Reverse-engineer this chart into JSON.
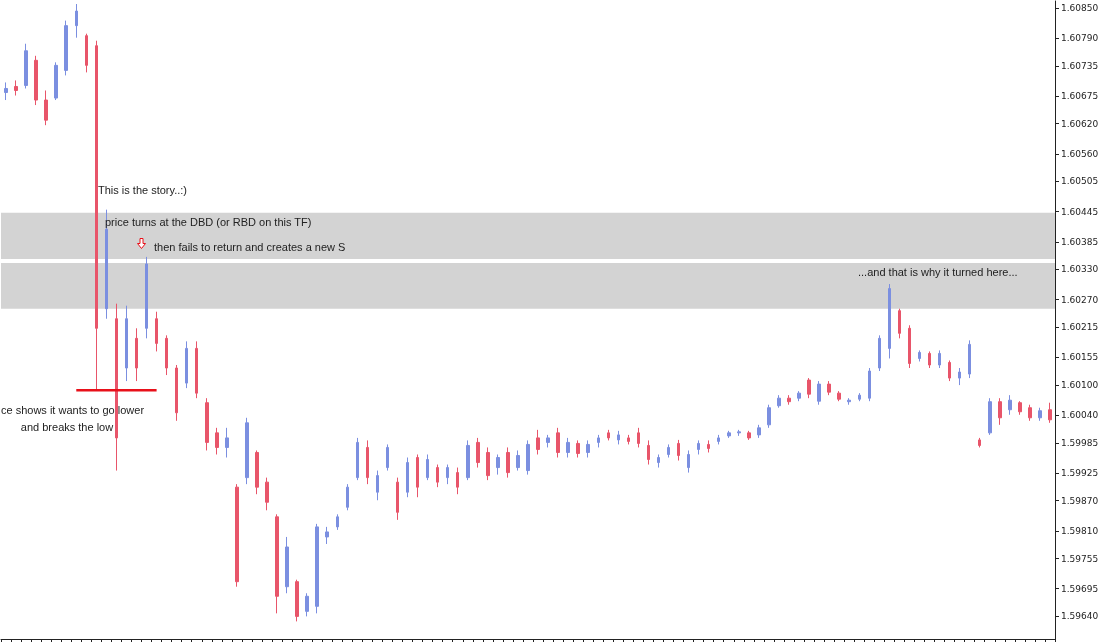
{
  "chart_data": {
    "type": "candlestick",
    "categories": [
      null,
      null,
      null,
      null,
      null,
      null,
      null,
      null,
      null,
      null,
      null,
      null,
      null,
      null,
      null,
      null,
      null,
      null,
      null,
      null,
      null,
      null,
      null,
      null,
      null,
      null,
      null,
      null,
      null,
      null,
      null,
      null,
      null,
      null,
      null,
      null,
      null,
      null,
      null,
      null,
      null,
      null,
      null,
      null,
      null,
      null,
      null,
      null,
      null,
      null,
      null,
      null,
      null,
      null,
      null,
      null,
      null,
      null,
      null,
      null,
      null,
      null,
      null,
      null,
      null,
      null,
      null,
      null,
      null,
      null,
      null,
      null,
      null,
      null,
      null,
      null,
      null,
      null,
      null,
      null,
      null,
      null,
      null,
      null,
      null,
      null,
      null,
      null,
      null,
      null,
      null,
      null,
      null,
      null,
      null,
      null,
      null,
      null,
      null,
      null,
      null,
      null,
      null,
      null,
      null
    ],
    "ohlc": [
      [
        1.60682,
        1.60702,
        1.60667,
        1.6069
      ],
      [
        1.60694,
        1.60706,
        1.60676,
        1.60686
      ],
      [
        1.60696,
        1.60779,
        1.6069,
        1.60765
      ],
      [
        1.60746,
        1.60755,
        1.60657,
        1.60667
      ],
      [
        1.60667,
        1.60686,
        1.60617,
        1.60627
      ],
      [
        1.60671,
        1.60742,
        1.60667,
        1.60736
      ],
      [
        1.60726,
        1.60825,
        1.60716,
        1.60815
      ],
      [
        1.60815,
        1.60858,
        1.60791,
        1.60844
      ],
      [
        1.60795,
        1.60799,
        1.60722,
        1.60736
      ],
      [
        1.60775,
        1.60785,
        1.6009,
        1.60213
      ],
      [
        1.60252,
        1.60449,
        1.60232,
        1.6041
      ],
      [
        1.60232,
        1.60262,
        1.5993,
        1.59995
      ],
      [
        1.60134,
        1.60258,
        1.60108,
        1.60232
      ],
      [
        1.60193,
        1.60213,
        1.60108,
        1.60134
      ],
      [
        1.60213,
        1.60355,
        1.60193,
        1.60341
      ],
      [
        1.60232,
        1.60246,
        1.60167,
        1.60183
      ],
      [
        1.60193,
        1.60199,
        1.6012,
        1.60134
      ],
      [
        1.60134,
        1.6014,
        1.60029,
        1.60045
      ],
      [
        1.60104,
        1.60187,
        1.60094,
        1.60173
      ],
      [
        1.60173,
        1.60187,
        1.60074,
        1.60084
      ],
      [
        1.60065,
        1.60074,
        1.5997,
        1.59986
      ],
      [
        1.60005,
        1.60015,
        1.59962,
        1.59976
      ],
      [
        1.59976,
        1.60015,
        1.59956,
        1.59995
      ],
      [
        1.59897,
        1.59903,
        1.59699,
        1.59709
      ],
      [
        1.59916,
        1.60035,
        1.59903,
        1.60025
      ],
      [
        1.59966,
        1.5997,
        1.59883,
        1.59897
      ],
      [
        1.59907,
        1.59916,
        1.59851,
        1.59867
      ],
      [
        1.59838,
        1.59843,
        1.59646,
        1.5968
      ],
      [
        1.59699,
        1.59798,
        1.59686,
        1.59778
      ],
      [
        1.59709,
        1.59713,
        1.5963,
        1.5964
      ],
      [
        1.5965,
        1.59686,
        1.5964,
        1.5968
      ],
      [
        1.5966,
        1.59824,
        1.59646,
        1.59818
      ],
      [
        1.59798,
        1.59818,
        1.59784,
        1.59808
      ],
      [
        1.59818,
        1.59843,
        1.59812,
        1.59838
      ],
      [
        1.59857,
        1.59903,
        1.59851,
        1.59897
      ],
      [
        1.59916,
        1.59995,
        1.59911,
        1.59986
      ],
      [
        1.59976,
        1.5999,
        1.59903,
        1.59916
      ],
      [
        1.59887,
        1.5993,
        1.59871,
        1.5992
      ],
      [
        1.59936,
        1.59982,
        1.5993,
        1.59976
      ],
      [
        1.59907,
        1.59916,
        1.59832,
        1.59847
      ],
      [
        1.59887,
        1.59956,
        1.59877,
        1.59946
      ],
      [
        1.59956,
        1.59962,
        1.59877,
        1.59897
      ],
      [
        1.59916,
        1.59962,
        1.59911,
        1.59952
      ],
      [
        1.59936,
        1.59942,
        1.59897,
        1.59907
      ],
      [
        1.59916,
        1.59942,
        1.59903,
        1.59936
      ],
      [
        1.59926,
        1.59936,
        1.59883,
        1.59897
      ],
      [
        1.59916,
        1.5999,
        1.59911,
        1.5998
      ],
      [
        1.59986,
        1.59995,
        1.59936,
        1.59946
      ],
      [
        1.59966,
        1.59976,
        1.59911,
        1.5992
      ],
      [
        1.59936,
        1.59962,
        1.59922,
        1.59956
      ],
      [
        1.59966,
        1.59976,
        1.59916,
        1.59926
      ],
      [
        1.59936,
        1.5997,
        1.5993,
        1.5996
      ],
      [
        1.5993,
        1.5999,
        1.59922,
        1.59982
      ],
      [
        1.59995,
        1.60011,
        1.59962,
        1.59972
      ],
      [
        1.59986,
        1.60001,
        1.59976,
        1.59995
      ],
      [
        1.60005,
        1.60015,
        1.59956,
        1.59966
      ],
      [
        1.59966,
        1.59995,
        1.59956,
        1.59986
      ],
      [
        1.59984,
        1.5999,
        1.59956,
        1.59964
      ],
      [
        1.59966,
        1.5999,
        1.59956,
        1.59982
      ],
      [
        1.59986,
        1.60001,
        1.59976,
        1.59995
      ],
      [
        1.60005,
        1.60011,
        1.5999,
        1.59995
      ],
      [
        1.59991,
        1.60009,
        1.59982,
        1.60001
      ],
      [
        1.59995,
        1.60001,
        1.59982,
        1.59988
      ],
      [
        1.60005,
        1.60015,
        1.59976,
        1.59984
      ],
      [
        1.5998,
        1.5999,
        1.59942,
        1.59952
      ],
      [
        1.59946,
        1.59962,
        1.59936,
        1.59956
      ],
      [
        1.59962,
        1.59982,
        1.59956,
        1.59976
      ],
      [
        1.59984,
        1.59991,
        1.5995,
        1.5996
      ],
      [
        1.59936,
        1.5997,
        1.59926,
        1.59962
      ],
      [
        1.59972,
        1.5999,
        1.59962,
        1.59984
      ],
      [
        1.59982,
        1.5999,
        1.59966,
        1.59974
      ],
      [
        1.59988,
        1.60001,
        1.59982,
        1.59995
      ],
      [
        1.59999,
        1.60009,
        1.59995,
        1.60005
      ],
      [
        1.60005,
        1.60011,
        1.59999,
        1.60007
      ],
      [
        1.60005,
        1.60009,
        1.59991,
        1.59995
      ],
      [
        1.60001,
        1.60021,
        1.59995,
        1.60015
      ],
      [
        1.60021,
        1.60061,
        1.60015,
        1.60055
      ],
      [
        1.60059,
        1.6008,
        1.60055,
        1.60074
      ],
      [
        1.60074,
        1.6008,
        1.60061,
        1.60067
      ],
      [
        1.60074,
        1.60088,
        1.60068,
        1.60084
      ],
      [
        1.6011,
        1.60114,
        1.60074,
        1.60082
      ],
      [
        1.60068,
        1.60108,
        1.60061,
        1.60102
      ],
      [
        1.60102,
        1.60108,
        1.6008,
        1.60086
      ],
      [
        1.60084,
        1.60088,
        1.60068,
        1.60072
      ],
      [
        1.60067,
        1.60074,
        1.60061,
        1.6007
      ],
      [
        1.60072,
        1.60084,
        1.60068,
        1.6008
      ],
      [
        1.60074,
        1.60134,
        1.60068,
        1.60128
      ],
      [
        1.60134,
        1.60199,
        1.60128,
        1.60193
      ],
      [
        1.60173,
        1.60301,
        1.60153,
        1.60292
      ],
      [
        1.60248,
        1.60252,
        1.60193,
        1.60203
      ],
      [
        1.60213,
        1.60219,
        1.60134,
        1.60143
      ],
      [
        1.60153,
        1.60169,
        1.60147,
        1.60165
      ],
      [
        1.60163,
        1.60167,
        1.60134,
        1.6014
      ],
      [
        1.6014,
        1.60169,
        1.60134,
        1.60163
      ],
      [
        1.60145,
        1.60149,
        1.60108,
        1.60114
      ],
      [
        1.60114,
        1.60134,
        1.601,
        1.60126
      ],
      [
        1.60122,
        1.60189,
        1.60114,
        1.60181
      ],
      [
        1.59991,
        1.59995,
        1.59976,
        1.5998
      ],
      [
        1.60005,
        1.60074,
        1.60001,
        1.60067
      ],
      [
        1.60067,
        1.60074,
        1.60021,
        1.60035
      ],
      [
        1.60051,
        1.6008,
        1.60041,
        1.6007
      ],
      [
        1.60065,
        1.60068,
        1.60041,
        1.60047
      ],
      [
        1.60055,
        1.60061,
        1.60029,
        1.60035
      ],
      [
        1.60035,
        1.60055,
        1.60029,
        1.60049
      ],
      [
        1.60051,
        1.60065,
        1.60025,
        1.60031
      ]
    ],
    "colors": [
      "#7b8fe0",
      "#e8556a",
      "#7b8fe0",
      "#e8556a",
      "#e8556a",
      "#7b8fe0",
      "#7b8fe0",
      "#7b8fe0",
      "#e8556a",
      "#e8556a",
      "#7b8fe0",
      "#e8556a",
      "#7b8fe0",
      "#e8556a",
      "#7b8fe0",
      "#e8556a",
      "#e8556a",
      "#e8556a",
      "#7b8fe0",
      "#e8556a",
      "#e8556a",
      "#e8556a",
      "#7b8fe0",
      "#e8556a",
      "#7b8fe0",
      "#e8556a",
      "#e8556a",
      "#e8556a",
      "#7b8fe0",
      "#e8556a",
      "#7b8fe0",
      "#7b8fe0",
      "#7b8fe0",
      "#7b8fe0",
      "#7b8fe0",
      "#7b8fe0",
      "#e8556a",
      "#7b8fe0",
      "#7b8fe0",
      "#e8556a",
      "#7b8fe0",
      "#e8556a",
      "#7b8fe0",
      "#e8556a",
      "#7b8fe0",
      "#e8556a",
      "#7b8fe0",
      "#e8556a",
      "#e8556a",
      "#7b8fe0",
      "#e8556a",
      "#7b8fe0",
      "#7b8fe0",
      "#e8556a",
      "#7b8fe0",
      "#e8556a",
      "#7b8fe0",
      "#e8556a",
      "#7b8fe0",
      "#7b8fe0",
      "#e8556a",
      "#7b8fe0",
      "#e8556a",
      "#e8556a",
      "#e8556a",
      "#7b8fe0",
      "#7b8fe0",
      "#e8556a",
      "#7b8fe0",
      "#7b8fe0",
      "#e8556a",
      "#7b8fe0",
      "#7b8fe0",
      "#7b8fe0",
      "#e8556a",
      "#7b8fe0",
      "#7b8fe0",
      "#7b8fe0",
      "#e8556a",
      "#7b8fe0",
      "#e8556a",
      "#7b8fe0",
      "#e8556a",
      "#e8556a",
      "#7b8fe0",
      "#7b8fe0",
      "#7b8fe0",
      "#7b8fe0",
      "#7b8fe0",
      "#e8556a",
      "#e8556a",
      "#7b8fe0",
      "#e8556a",
      "#7b8fe0",
      "#e8556a",
      "#7b8fe0",
      "#7b8fe0",
      "#e8556a",
      "#7b8fe0",
      "#e8556a",
      "#7b8fe0",
      "#e8556a",
      "#e8556a",
      "#7b8fe0",
      "#e8556a"
    ],
    "series": [
      {
        "type": "line",
        "color": "#e8101a",
        "values": [
          null,
          null,
          null,
          null,
          null,
          null,
          null,
          1.6009,
          1.6009,
          1.6009,
          1.6009,
          1.6009,
          1.6009,
          1.6009,
          1.6009,
          1.6009,
          null,
          null,
          null,
          null,
          null,
          null,
          null,
          null,
          null,
          null,
          null,
          null,
          null,
          null,
          null,
          null,
          null,
          null,
          null,
          null,
          null,
          null,
          null,
          null,
          null,
          null,
          null,
          null,
          null,
          null,
          null,
          null,
          null,
          null,
          null,
          null,
          null,
          null,
          null,
          null,
          null,
          null,
          null,
          null,
          null,
          null,
          null,
          null,
          null,
          null,
          null,
          null,
          null,
          null,
          null,
          null,
          null,
          null,
          null,
          null,
          null,
          null,
          null,
          null,
          null,
          null,
          null,
          null,
          null,
          null,
          null,
          null,
          null,
          null,
          null,
          null,
          null,
          null,
          null,
          null,
          null,
          null,
          null,
          null,
          null,
          null,
          null,
          null,
          null
        ]
      }
    ],
    "bands": [
      {
        "axis": "y",
        "from": 1.60351,
        "to": 1.60443,
        "color": "#d3d3d3"
      },
      {
        "axis": "y",
        "from": 1.60252,
        "to": 1.60343,
        "color": "#d3d3d3"
      }
    ],
    "annotations": [
      "This is the story..:)",
      "price turns at the DBD (or RBD on this TF)",
      "then fails to return and creates a new S",
      "...and that is why it turned here...",
      "ce shows it wants to go lower",
      "and breaks the low"
    ],
    "ylim": [
      1.59595,
      1.60864
    ],
    "yticks": [
      {
        "value": 1.6085,
        "label": "1.60850"
      },
      {
        "value": 1.6079,
        "label": "1.60790"
      },
      {
        "value": 1.60735,
        "label": "1.60735"
      },
      {
        "value": 1.60675,
        "label": "1.60675"
      },
      {
        "value": 1.6062,
        "label": "1.60620"
      },
      {
        "value": 1.6056,
        "label": "1.60560"
      },
      {
        "value": 1.60505,
        "label": "1.60505"
      },
      {
        "value": 1.60445,
        "label": "1.60445"
      },
      {
        "value": 1.60385,
        "label": "1.60385"
      },
      {
        "value": 1.6033,
        "label": "1.60330"
      },
      {
        "value": 1.6027,
        "label": "1.60270"
      },
      {
        "value": 1.60215,
        "label": "1.60215"
      },
      {
        "value": 1.60155,
        "label": "1.60155"
      },
      {
        "value": 1.601,
        "label": "1.60100"
      },
      {
        "value": 1.6004,
        "label": "1.60040"
      },
      {
        "value": 1.59985,
        "label": "1.59985"
      },
      {
        "value": 1.59925,
        "label": "1.59925"
      },
      {
        "value": 1.5987,
        "label": "1.59870"
      },
      {
        "value": 1.5981,
        "label": "1.59810"
      },
      {
        "value": 1.59755,
        "label": "1.59755"
      },
      {
        "value": 1.59695,
        "label": "1.59695"
      },
      {
        "value": 1.5964,
        "label": "1.59640"
      }
    ],
    "tick_labels": "y",
    "grid": false
  }
}
